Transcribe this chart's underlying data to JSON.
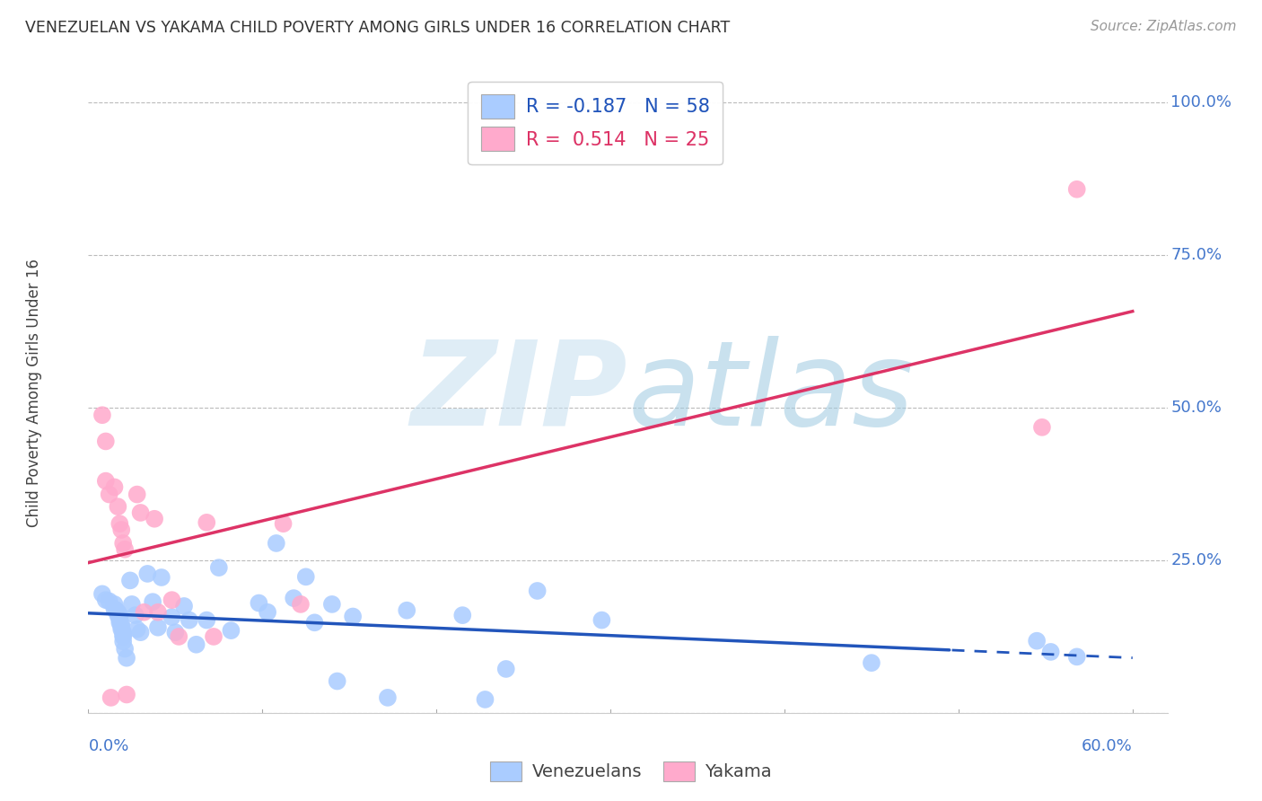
{
  "title": "VENEZUELAN VS YAKAMA CHILD POVERTY AMONG GIRLS UNDER 16 CORRELATION CHART",
  "source": "Source: ZipAtlas.com",
  "ylabel": "Child Poverty Among Girls Under 16",
  "xlim": [
    0.0,
    0.62
  ],
  "ylim": [
    0.0,
    1.05
  ],
  "watermark_top": "ZIP",
  "watermark_bottom": "atlas",
  "venezuelan_color": "#aaccff",
  "yakama_color": "#ffaacc",
  "venezuelan_line_color": "#2255bb",
  "yakama_line_color": "#dd3366",
  "background_color": "#ffffff",
  "grid_color": "#bbbbbb",
  "tick_label_color": "#4477cc",
  "ytick_positions": [
    0.0,
    0.25,
    0.5,
    0.75,
    1.0
  ],
  "ytick_labels": [
    "",
    "25.0%",
    "50.0%",
    "75.0%",
    "100.0%"
  ],
  "venezuelan_x": [
    0.008,
    0.01,
    0.012,
    0.015,
    0.015,
    0.016,
    0.017,
    0.017,
    0.018,
    0.018,
    0.018,
    0.018,
    0.019,
    0.019,
    0.019,
    0.02,
    0.02,
    0.02,
    0.02,
    0.021,
    0.022,
    0.024,
    0.025,
    0.027,
    0.028,
    0.03,
    0.034,
    0.037,
    0.04,
    0.042,
    0.048,
    0.05,
    0.055,
    0.058,
    0.062,
    0.068,
    0.075,
    0.082,
    0.098,
    0.103,
    0.108,
    0.118,
    0.125,
    0.13,
    0.14,
    0.143,
    0.152,
    0.172,
    0.183,
    0.215,
    0.228,
    0.24,
    0.258,
    0.295,
    0.45,
    0.545,
    0.553,
    0.568
  ],
  "venezuelan_y": [
    0.195,
    0.185,
    0.183,
    0.178,
    0.17,
    0.168,
    0.165,
    0.16,
    0.16,
    0.157,
    0.153,
    0.148,
    0.145,
    0.141,
    0.137,
    0.132,
    0.127,
    0.125,
    0.117,
    0.105,
    0.09,
    0.217,
    0.178,
    0.16,
    0.137,
    0.132,
    0.228,
    0.182,
    0.14,
    0.222,
    0.157,
    0.132,
    0.175,
    0.152,
    0.112,
    0.152,
    0.238,
    0.135,
    0.18,
    0.165,
    0.278,
    0.188,
    0.223,
    0.148,
    0.178,
    0.052,
    0.158,
    0.025,
    0.168,
    0.16,
    0.022,
    0.072,
    0.2,
    0.152,
    0.082,
    0.118,
    0.1,
    0.092
  ],
  "yakama_x": [
    0.008,
    0.01,
    0.01,
    0.012,
    0.013,
    0.015,
    0.017,
    0.018,
    0.019,
    0.02,
    0.021,
    0.022,
    0.028,
    0.03,
    0.032,
    0.038,
    0.04,
    0.048,
    0.052,
    0.068,
    0.072,
    0.112,
    0.122,
    0.548,
    0.568
  ],
  "yakama_y": [
    0.488,
    0.445,
    0.38,
    0.358,
    0.025,
    0.37,
    0.338,
    0.31,
    0.3,
    0.278,
    0.268,
    0.03,
    0.358,
    0.328,
    0.165,
    0.318,
    0.165,
    0.185,
    0.125,
    0.312,
    0.125,
    0.31,
    0.178,
    0.468,
    0.858
  ],
  "legend_v_label": "R = -0.187   N = 58",
  "legend_y_label": "R =  0.514   N = 25",
  "bottom_legend_v": "Venezuelans",
  "bottom_legend_y": "Yakama"
}
